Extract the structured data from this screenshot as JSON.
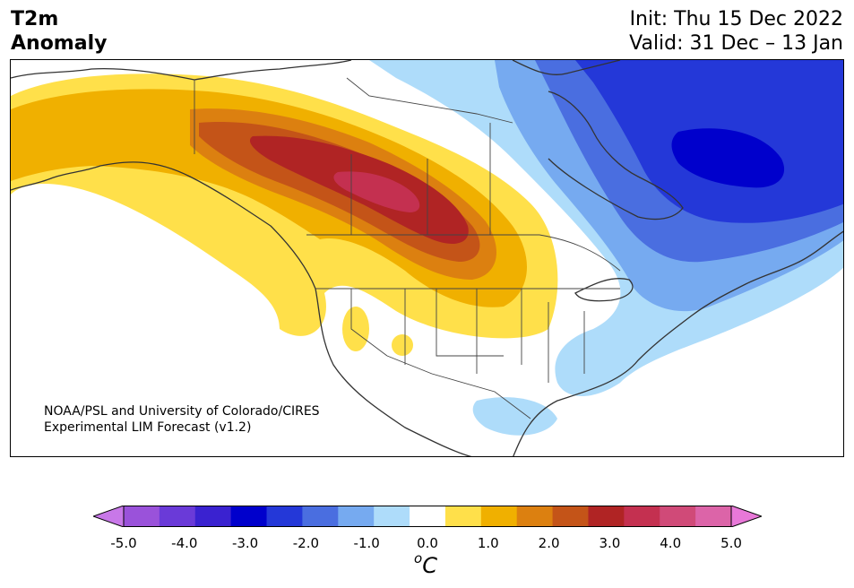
{
  "header": {
    "title_line1": "T2m",
    "title_line2": "Anomaly",
    "init": "Init: Thu 15 Dec 2022",
    "valid": "Valid: 31 Dec – 13 Jan"
  },
  "map": {
    "region": "North America",
    "credit_line1": "NOAA/PSL and University of Colorado/CIRES",
    "credit_line2": "Experimental LIM Forecast (v1.2)"
  },
  "colorbar": {
    "unit_base": "C",
    "unit_super": "o",
    "ticks": [
      "-5.0",
      "-4.0",
      "-3.0",
      "-2.0",
      "-1.0",
      "0.0",
      "1.0",
      "2.0",
      "3.0",
      "4.0",
      "5.0"
    ],
    "colors": [
      "#c878e8",
      "#9a52da",
      "#6a3ad8",
      "#3a22d0",
      "#0000cc",
      "#2438d8",
      "#4a6ee0",
      "#76aaf0",
      "#aedcfa",
      "#ffffff",
      "#ffe04a",
      "#f0b000",
      "#dc8010",
      "#c45418",
      "#b02424",
      "#c43050",
      "#d04a78",
      "#dc64a8",
      "#e878d8"
    ]
  }
}
